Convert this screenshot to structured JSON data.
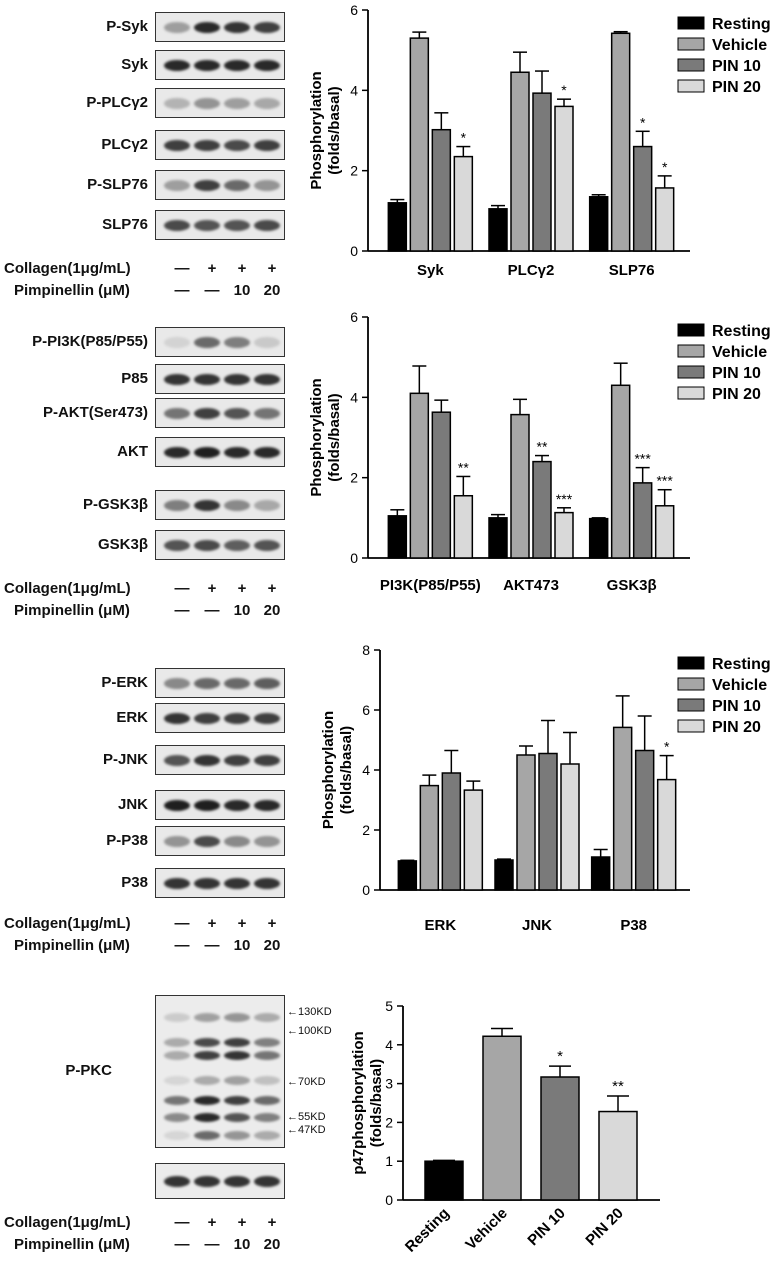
{
  "panels": [
    {
      "blots": [
        "P-Syk",
        "Syk",
        "P-PLCγ2",
        "PLCγ2",
        "P-SLP76",
        "SLP76"
      ],
      "treatments": {
        "collagen_label": "Collagen(1μg/mL)",
        "collagen_values": [
          "—",
          "+",
          "+",
          "+"
        ],
        "pimpinellin_label": "Pimpinellin (μM)",
        "pimpinellin_values": [
          "—",
          "—",
          "10",
          "20"
        ]
      }
    },
    {
      "blots": [
        "P-PI3K(P85/P55)",
        "P85",
        "P-AKT(Ser473)",
        "AKT",
        "P-GSK3β",
        "GSK3β"
      ],
      "treatments": {
        "collagen_label": "Collagen(1μg/mL)",
        "collagen_values": [
          "—",
          "+",
          "+",
          "+"
        ],
        "pimpinellin_label": "Pimpinellin (μM)",
        "pimpinellin_values": [
          "—",
          "—",
          "10",
          "20"
        ]
      }
    },
    {
      "blots": [
        "P-ERK",
        "ERK",
        "P-JNK",
        "JNK",
        "P-P38",
        "P38"
      ],
      "treatments": {
        "collagen_label": "Collagen(1μg/mL)",
        "collagen_values": [
          "—",
          "+",
          "+",
          "+"
        ],
        "pimpinellin_label": "Pimpinellin (μM)",
        "pimpinellin_values": [
          "—",
          "—",
          "10",
          "20"
        ]
      }
    },
    {
      "blots": [
        "P-PKC"
      ],
      "kd_markers": [
        "130KD",
        "100KD",
        "70KD",
        "55KD",
        "47KD"
      ],
      "treatments": {
        "collagen_label": "Collagen(1μg/mL)",
        "collagen_values": [
          "—",
          "+",
          "+",
          "+"
        ],
        "pimpinellin_label": "Pimpinellin (μM)",
        "pimpinellin_values": [
          "—",
          "—",
          "10",
          "20"
        ]
      }
    }
  ],
  "chart_data": [
    {
      "type": "bar",
      "ylabel": "Phosphorylation (folds/basal)",
      "ylim": [
        0,
        6
      ],
      "yticks": [
        0,
        2,
        4,
        6
      ],
      "categories": [
        "Syk",
        "PLCγ2",
        "SLP76"
      ],
      "legend_position": "top-right",
      "series": [
        {
          "name": "Resting",
          "color": "#000000",
          "values": [
            1.2,
            1.05,
            1.35
          ],
          "errors": [
            0.08,
            0.08,
            0.05
          ]
        },
        {
          "name": "Vehicle",
          "color": "#a6a6a6",
          "values": [
            5.3,
            4.45,
            5.42
          ],
          "errors": [
            0.15,
            0.5,
            0.04
          ]
        },
        {
          "name": "PIN 10",
          "color": "#7a7a7a",
          "values": [
            3.02,
            3.93,
            2.6
          ],
          "errors": [
            0.42,
            0.55,
            0.38
          ]
        },
        {
          "name": "PIN 20",
          "color": "#d9d9d9",
          "values": [
            2.35,
            3.6,
            1.57
          ],
          "errors": [
            0.25,
            0.18,
            0.3
          ]
        }
      ],
      "annotations": [
        {
          "category": "Syk",
          "series": "PIN 20",
          "text": "*"
        },
        {
          "category": "PLCγ2",
          "series": "PIN 20",
          "text": "*"
        },
        {
          "category": "SLP76",
          "series": "PIN 10",
          "text": "*"
        },
        {
          "category": "SLP76",
          "series": "PIN 20",
          "text": "*"
        }
      ]
    },
    {
      "type": "bar",
      "ylabel": "Phosphorylation (folds/basal)",
      "ylim": [
        0,
        6
      ],
      "yticks": [
        0,
        2,
        4,
        6
      ],
      "categories": [
        "PI3K(P85/P55)",
        "AKT473",
        "GSK3β"
      ],
      "legend_position": "top-right",
      "series": [
        {
          "name": "Resting",
          "color": "#000000",
          "values": [
            1.05,
            1.0,
            0.98
          ],
          "errors": [
            0.15,
            0.08,
            0.02
          ]
        },
        {
          "name": "Vehicle",
          "color": "#a6a6a6",
          "values": [
            4.1,
            3.57,
            4.3
          ],
          "errors": [
            0.68,
            0.38,
            0.55
          ]
        },
        {
          "name": "PIN 10",
          "color": "#7a7a7a",
          "values": [
            3.63,
            2.4,
            1.87
          ],
          "errors": [
            0.3,
            0.15,
            0.38
          ]
        },
        {
          "name": "PIN 20",
          "color": "#d9d9d9",
          "values": [
            1.55,
            1.13,
            1.3
          ],
          "errors": [
            0.48,
            0.12,
            0.4
          ]
        }
      ],
      "annotations": [
        {
          "category": "PI3K(P85/P55)",
          "series": "PIN 20",
          "text": "**"
        },
        {
          "category": "AKT473",
          "series": "PIN 10",
          "text": "**"
        },
        {
          "category": "AKT473",
          "series": "PIN 20",
          "text": "***"
        },
        {
          "category": "GSK3β",
          "series": "PIN 10",
          "text": "***"
        },
        {
          "category": "GSK3β",
          "series": "PIN 20",
          "text": "***"
        }
      ]
    },
    {
      "type": "bar",
      "ylabel": "Phosphorylation (folds/basal)",
      "ylim": [
        0,
        8
      ],
      "yticks": [
        0,
        2,
        4,
        6,
        8
      ],
      "categories": [
        "ERK",
        "JNK",
        "P38"
      ],
      "legend_position": "top-right",
      "series": [
        {
          "name": "Resting",
          "color": "#000000",
          "values": [
            0.97,
            1.0,
            1.1
          ],
          "errors": [
            0.02,
            0.03,
            0.25
          ]
        },
        {
          "name": "Vehicle",
          "color": "#a6a6a6",
          "values": [
            3.48,
            4.5,
            5.42
          ],
          "errors": [
            0.35,
            0.3,
            1.05
          ]
        },
        {
          "name": "PIN 10",
          "color": "#7a7a7a",
          "values": [
            3.9,
            4.55,
            4.65
          ],
          "errors": [
            0.75,
            1.1,
            1.15
          ]
        },
        {
          "name": "PIN 20",
          "color": "#d9d9d9",
          "values": [
            3.33,
            4.2,
            3.68
          ],
          "errors": [
            0.3,
            1.05,
            0.8
          ]
        }
      ],
      "annotations": [
        {
          "category": "P38",
          "series": "PIN 20",
          "text": "*"
        }
      ]
    },
    {
      "type": "bar",
      "ylabel": "p47phosphorylation (folds/basal)",
      "ylim": [
        0,
        5
      ],
      "yticks": [
        0,
        1,
        2,
        3,
        4,
        5
      ],
      "categories": [
        "Resting",
        "Vehicle",
        "PIN 10",
        "PIN 20"
      ],
      "colors": [
        "#000000",
        "#a6a6a6",
        "#7a7a7a",
        "#d9d9d9"
      ],
      "values": [
        1.0,
        4.22,
        3.17,
        2.28
      ],
      "errors": [
        0.02,
        0.2,
        0.28,
        0.4
      ],
      "annotations": [
        "",
        "",
        "*",
        "**"
      ]
    }
  ]
}
